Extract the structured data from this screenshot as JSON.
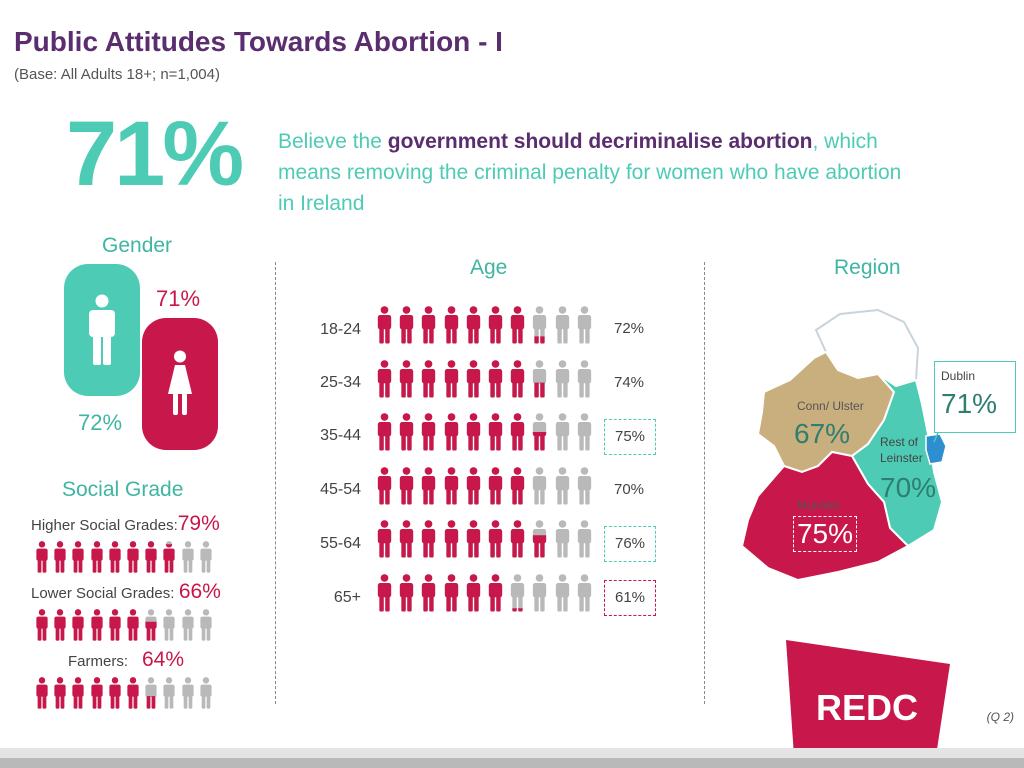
{
  "header": {
    "title": "Public Attitudes Towards Abortion - I",
    "subtitle": "(Base: All Adults 18+; n=1,004)"
  },
  "headline": {
    "value": "71%",
    "text_before": "Believe the ",
    "text_bold": "government should decriminalise abortion",
    "text_after": ", which means removing the criminal penalty for women who have abortion in Ireland"
  },
  "gender": {
    "title": "Gender",
    "male_value": "72%",
    "female_value": "71%"
  },
  "age": {
    "title": "Age",
    "rows": [
      {
        "label": "18-24",
        "value": "72%",
        "highlight": "none"
      },
      {
        "label": "25-34",
        "value": "74%",
        "highlight": "none"
      },
      {
        "label": "35-44",
        "value": "75%",
        "highlight": "teal"
      },
      {
        "label": "45-54",
        "value": "70%",
        "highlight": "none"
      },
      {
        "label": "55-64",
        "value": "76%",
        "highlight": "teal"
      },
      {
        "label": "65+",
        "value": "61%",
        "highlight": "red"
      }
    ]
  },
  "social_grade": {
    "title": "Social Grade",
    "rows": [
      {
        "label": "Higher Social Grades:",
        "value": "79%"
      },
      {
        "label": "Lower Social Grades:",
        "value": "66%"
      },
      {
        "label": "Farmers:",
        "value": "64%"
      }
    ]
  },
  "region": {
    "title": "Region",
    "areas": [
      {
        "name": "Conn/ Ulster",
        "value": "67%"
      },
      {
        "name": "Rest of Leinster",
        "value": "70%"
      },
      {
        "name": "Munster",
        "value": "75%"
      },
      {
        "name": "Dublin",
        "value": "71%"
      }
    ]
  },
  "logo": "REDC",
  "question_ref": "(Q 2)",
  "colors": {
    "red": "#c8174a",
    "teal": "#4ecbb5",
    "grey": "#b9b9b9",
    "purple": "#5a2d6e",
    "tan": "#c9ae7e"
  },
  "chart_data": [
    {
      "type": "bar",
      "title": "Gender",
      "categories": [
        "Male",
        "Female"
      ],
      "values": [
        72,
        71
      ]
    },
    {
      "type": "bar",
      "title": "Age",
      "categories": [
        "18-24",
        "25-34",
        "35-44",
        "45-54",
        "55-64",
        "65+"
      ],
      "values": [
        72,
        74,
        75,
        70,
        76,
        61
      ]
    },
    {
      "type": "bar",
      "title": "Social Grade",
      "categories": [
        "Higher Social Grades",
        "Lower Social Grades",
        "Farmers"
      ],
      "values": [
        79,
        66,
        64
      ]
    },
    {
      "type": "bar",
      "title": "Region",
      "categories": [
        "Conn/ Ulster",
        "Rest of Leinster",
        "Munster",
        "Dublin"
      ],
      "values": [
        67,
        70,
        75,
        71
      ]
    }
  ]
}
